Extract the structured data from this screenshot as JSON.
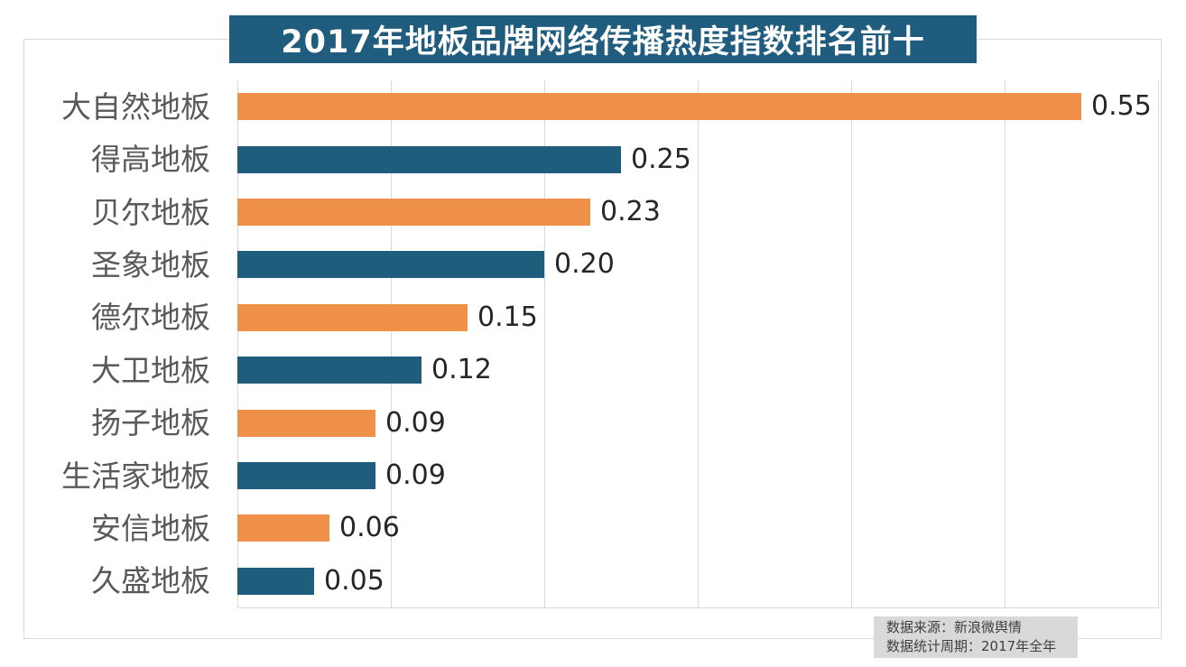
{
  "title": "2017年地板品牌网络传播热度指数排名前十",
  "source_note": {
    "line1": "数据来源：新浪微舆情",
    "line2": "数据统计周期：2017年全年"
  },
  "colors": {
    "title_bg": "#1f5c7d",
    "title_text": "#ffffff",
    "bar_orange": "#f0914a",
    "bar_teal": "#1f5d7c",
    "gridline": "#d9d9d9",
    "category_text": "#595959",
    "value_text": "#262626",
    "note_bg": "#d9d9d9",
    "note_text": "#404040"
  },
  "chart_data": {
    "type": "bar",
    "orientation": "horizontal",
    "title": "2017年地板品牌网络传播热度指数排名前十",
    "categories": [
      "大自然地板",
      "得高地板",
      "贝尔地板",
      "圣象地板",
      "德尔地板",
      "大卫地板",
      "扬子地板",
      "生活家地板",
      "安信地板",
      "久盛地板"
    ],
    "values": [
      0.55,
      0.25,
      0.23,
      0.2,
      0.15,
      0.12,
      0.09,
      0.09,
      0.06,
      0.05
    ],
    "value_labels": [
      "0.55",
      "0.25",
      "0.23",
      "0.20",
      "0.15",
      "0.12",
      "0.09",
      "0.09",
      "0.06",
      "0.05"
    ],
    "xlabel": "",
    "ylabel": "",
    "xlim": [
      0,
      0.6
    ],
    "grid_step": 0.1,
    "grid": "vertical-lines",
    "legend": "none",
    "bar_color_pattern": [
      "#f0914a",
      "#1f5d7c"
    ]
  }
}
